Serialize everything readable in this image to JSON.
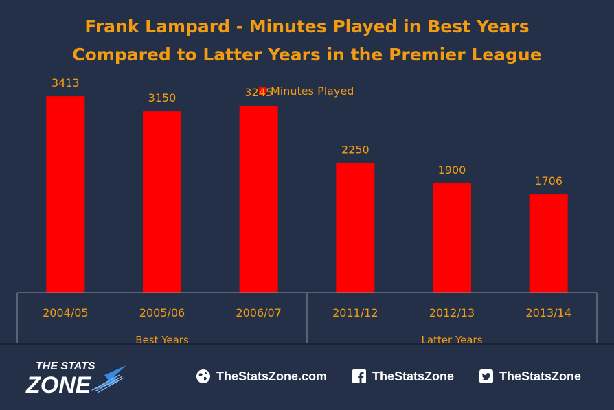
{
  "chart_data": {
    "type": "bar",
    "title_line1": "Frank Lampard - Minutes Played in Best Years",
    "title_line2": "Compared to Latter Years in the Premier League",
    "categories": [
      "2004/05",
      "2005/06",
      "2006/07",
      "2011/12",
      "2012/13",
      "2013/14"
    ],
    "series": [
      {
        "name": "Minutes Played",
        "values": [
          3413,
          3150,
          3245,
          2250,
          1900,
          1706
        ],
        "color": "#ff0000"
      }
    ],
    "groups": [
      {
        "label": "Best Years",
        "categories": [
          "2004/05",
          "2005/06",
          "2006/07"
        ]
      },
      {
        "label": "Latter Years",
        "categories": [
          "2011/12",
          "2012/13",
          "2013/14"
        ]
      }
    ],
    "ylim": [
      0,
      4000
    ],
    "grid": false,
    "legend_position": "top-center"
  },
  "footer": {
    "logo_text_top": "THE STATS",
    "logo_text_bottom": "ZONE",
    "website": "TheStatsZone.com",
    "facebook": "TheStatsZone",
    "twitter": "TheStatsZone",
    "icons": [
      "globe-icon",
      "facebook-icon",
      "twitter-icon"
    ]
  }
}
